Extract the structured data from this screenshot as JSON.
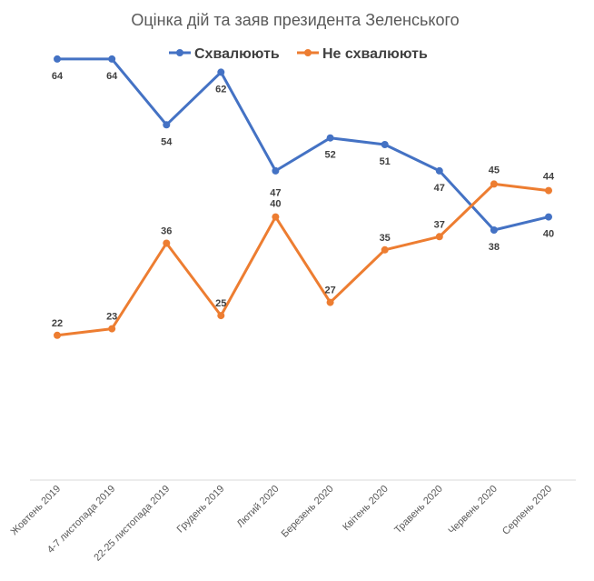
{
  "chart_data": {
    "type": "line",
    "title": "Оцінка дій та заяв президента Зеленського",
    "categories": [
      "Жовтень 2019",
      "4-7 листопада 2019",
      "22-25 листопада 2019",
      "Грудень 2019",
      "Лютий 2020",
      "Березень 2020",
      "Квітень 2020",
      "Травень 2020",
      "Червень 2020",
      "Серпень 2020"
    ],
    "series": [
      {
        "name": "Схвалюють",
        "color": "#4472C4",
        "values": [
          64,
          64,
          54,
          62,
          47,
          52,
          51,
          47,
          38,
          40
        ]
      },
      {
        "name": "Не схвалюють",
        "color": "#ED7D31",
        "values": [
          22,
          23,
          36,
          25,
          40,
          27,
          35,
          37,
          45,
          44
        ]
      }
    ],
    "xlabel": "",
    "ylabel": "",
    "ylim": [
      0,
      70
    ],
    "grid": false,
    "legend_position": "top",
    "data_labels": true
  }
}
